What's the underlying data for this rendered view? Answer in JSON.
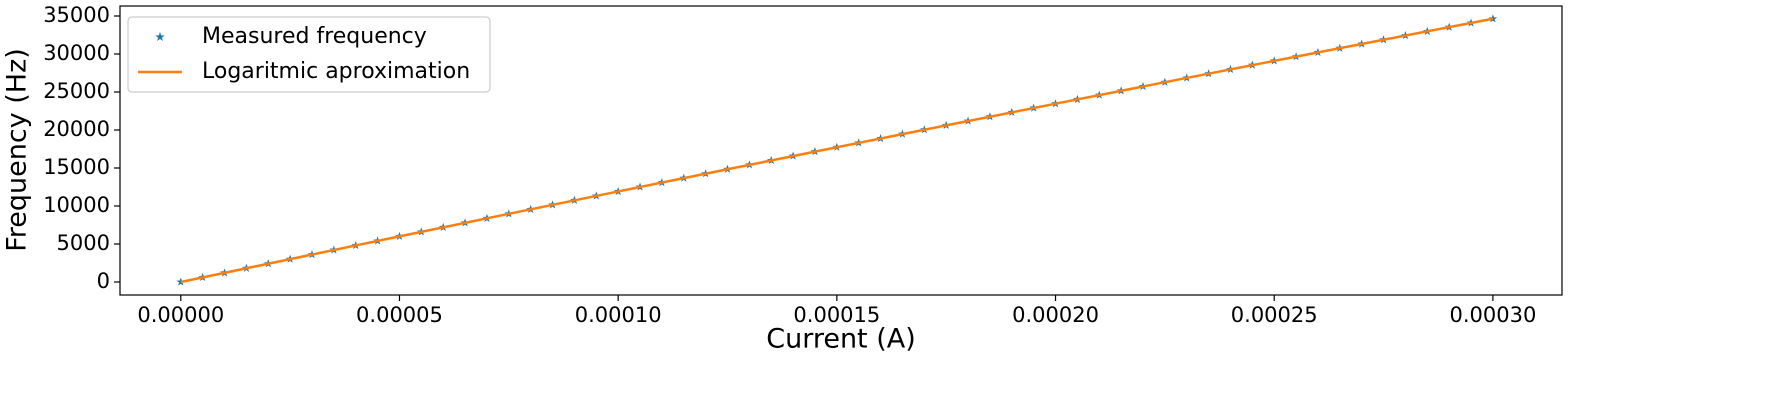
{
  "chart_data": {
    "type": "scatter-line",
    "xlabel": "Current (A)",
    "ylabel": "Frequency (Hz)",
    "xlim": [
      -1.39e-05,
      0.0003158
    ],
    "ylim": [
      -1711,
      36316
    ],
    "xticks": [
      {
        "value": 0,
        "label": "0.00000"
      },
      {
        "value": 5e-05,
        "label": "0.00005"
      },
      {
        "value": 0.0001,
        "label": "0.00010"
      },
      {
        "value": 0.00015,
        "label": "0.00015"
      },
      {
        "value": 0.0002,
        "label": "0.00020"
      },
      {
        "value": 0.00025,
        "label": "0.00025"
      },
      {
        "value": 0.0003,
        "label": "0.00030"
      }
    ],
    "yticks": [
      0,
      5000,
      10000,
      15000,
      20000,
      25000,
      30000,
      35000
    ],
    "legend": "upper left",
    "series": [
      {
        "name": "Measured frequency",
        "type": "scatter",
        "color": "#1f77b4",
        "x": [
          0,
          5e-06,
          1e-05,
          1.5e-05,
          2e-05,
          2.5e-05,
          3e-05,
          3.5e-05,
          4e-05,
          4.5e-05,
          5e-05,
          5.5e-05,
          6e-05,
          6.5e-05,
          7e-05,
          7.5e-05,
          8e-05,
          8.5e-05,
          9e-05,
          9.5e-05,
          0.0001,
          0.000105,
          0.00011,
          0.000115,
          0.00012,
          0.000125,
          0.00013,
          0.000135,
          0.00014,
          0.000145,
          0.00015,
          0.000155,
          0.00016,
          0.000165,
          0.00017,
          0.000175,
          0.00018,
          0.000185,
          0.00019,
          0.000195,
          0.0002,
          0.000205,
          0.00021,
          0.000215,
          0.00022,
          0.000225,
          0.00023,
          0.000235,
          0.00024,
          0.000245,
          0.00025,
          0.000255,
          0.00026,
          0.000265,
          0.00027,
          0.000275,
          0.00028,
          0.000285,
          0.00029,
          0.000295,
          0.0003
        ],
        "values": [
          0,
          605,
          1208,
          1811,
          2413,
          3013,
          3613,
          4212,
          4810,
          5408,
          6004,
          6599,
          7193,
          7787,
          8379,
          8971,
          9562,
          10151,
          10740,
          11328,
          11915,
          12501,
          13086,
          13670,
          14254,
          14836,
          15417,
          15998,
          16577,
          17156,
          17734,
          18311,
          18886,
          19461,
          20035,
          20608,
          21181,
          21752,
          22322,
          22892,
          23460,
          24028,
          24595,
          25160,
          25725,
          26288,
          26851,
          27413,
          27974,
          28535,
          29094,
          29652,
          30209,
          30766,
          31321,
          31876,
          32430,
          32982,
          33534,
          34085,
          34635
        ]
      },
      {
        "name": "Logaritmic aproximation",
        "type": "line",
        "color": "#ff7f0e",
        "x": [
          0,
          2.5e-05,
          5e-05,
          7.5e-05,
          0.0001,
          0.000125,
          0.00015,
          0.000175,
          0.0002,
          0.000225,
          0.00025,
          0.000275,
          0.0003
        ],
        "values": [
          0,
          3013,
          6004,
          8971,
          11915,
          14836,
          17734,
          20608,
          23460,
          26288,
          29094,
          31876,
          34635
        ]
      }
    ]
  }
}
